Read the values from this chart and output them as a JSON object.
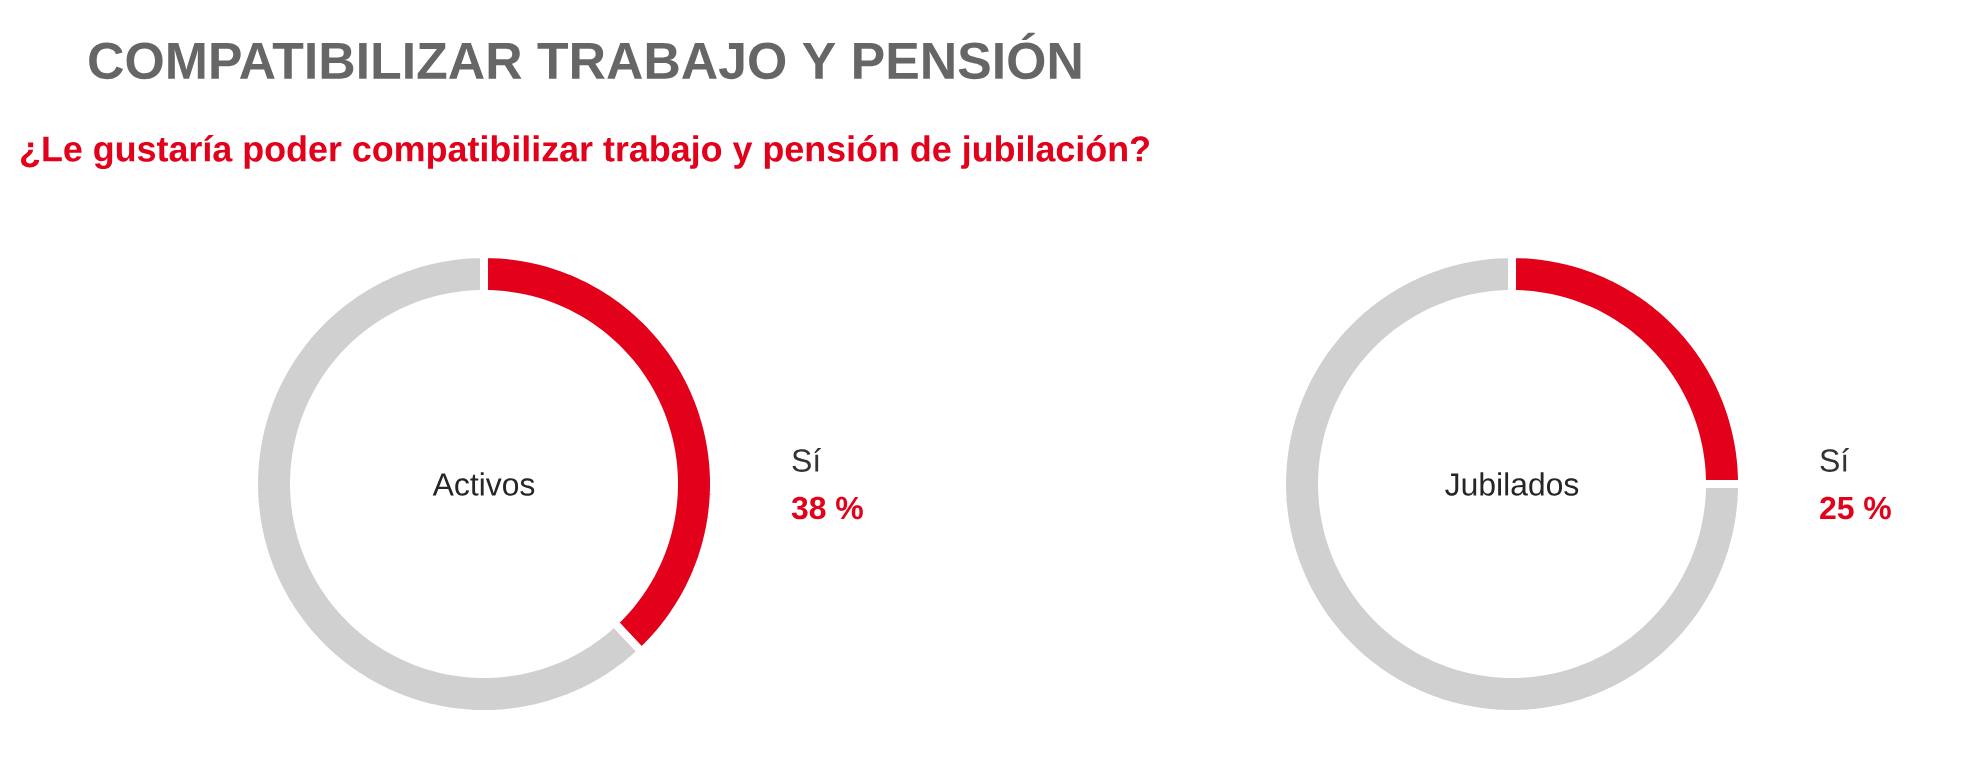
{
  "chart_data": [
    {
      "type": "donut",
      "title": "COMPATIBILIZAR TRABAJO Y PENSIÓN",
      "subtitle": "¿Le gustaría poder compatibilizar trabajo y pensión de jubilación?",
      "annotations": [
        "Activos"
      ],
      "categories": [
        "Sí",
        null
      ],
      "values": [
        38,
        62
      ],
      "colors": [
        "#e2001a",
        "#d0d0d0"
      ],
      "value_labels": [
        "38 %",
        null
      ]
    },
    {
      "type": "donut",
      "annotations": [
        "Jubilados"
      ],
      "categories": [
        "Sí",
        null
      ],
      "values": [
        25,
        75
      ],
      "colors": [
        "#e2001a",
        "#d0d0d0"
      ],
      "value_labels": [
        "25 %",
        null
      ]
    }
  ]
}
